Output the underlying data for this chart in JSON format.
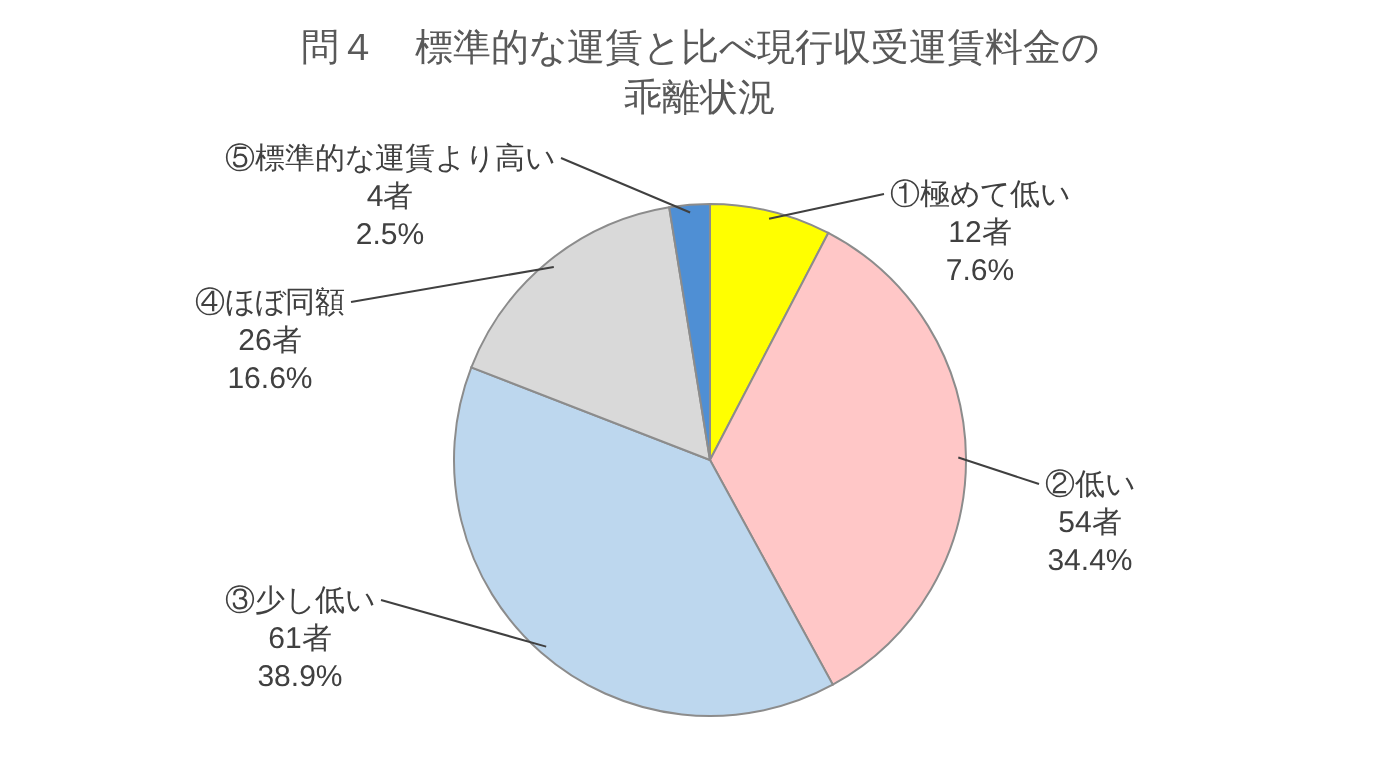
{
  "chart_data": {
    "type": "pie",
    "title": "問４　標準的な運賃と比べ現行収受運賃料金の乖離状況",
    "categories": [
      "①極めて低い",
      "②低い",
      "③少し低い",
      "④ほぼ同額",
      "⑤標準的な運賃より高い"
    ],
    "values": [
      12,
      54,
      61,
      26,
      4
    ],
    "value_labels": [
      "12者\n7.6%",
      "54者\n34.4%",
      "61者\n38.9%",
      "26者\n16.6%",
      "4者\n2.5%"
    ],
    "colors": [
      "#ffff00",
      "#ffc7c7",
      "#bdd7ee",
      "#d9d9d9",
      "#4f8fd4"
    ],
    "legend": false
  }
}
